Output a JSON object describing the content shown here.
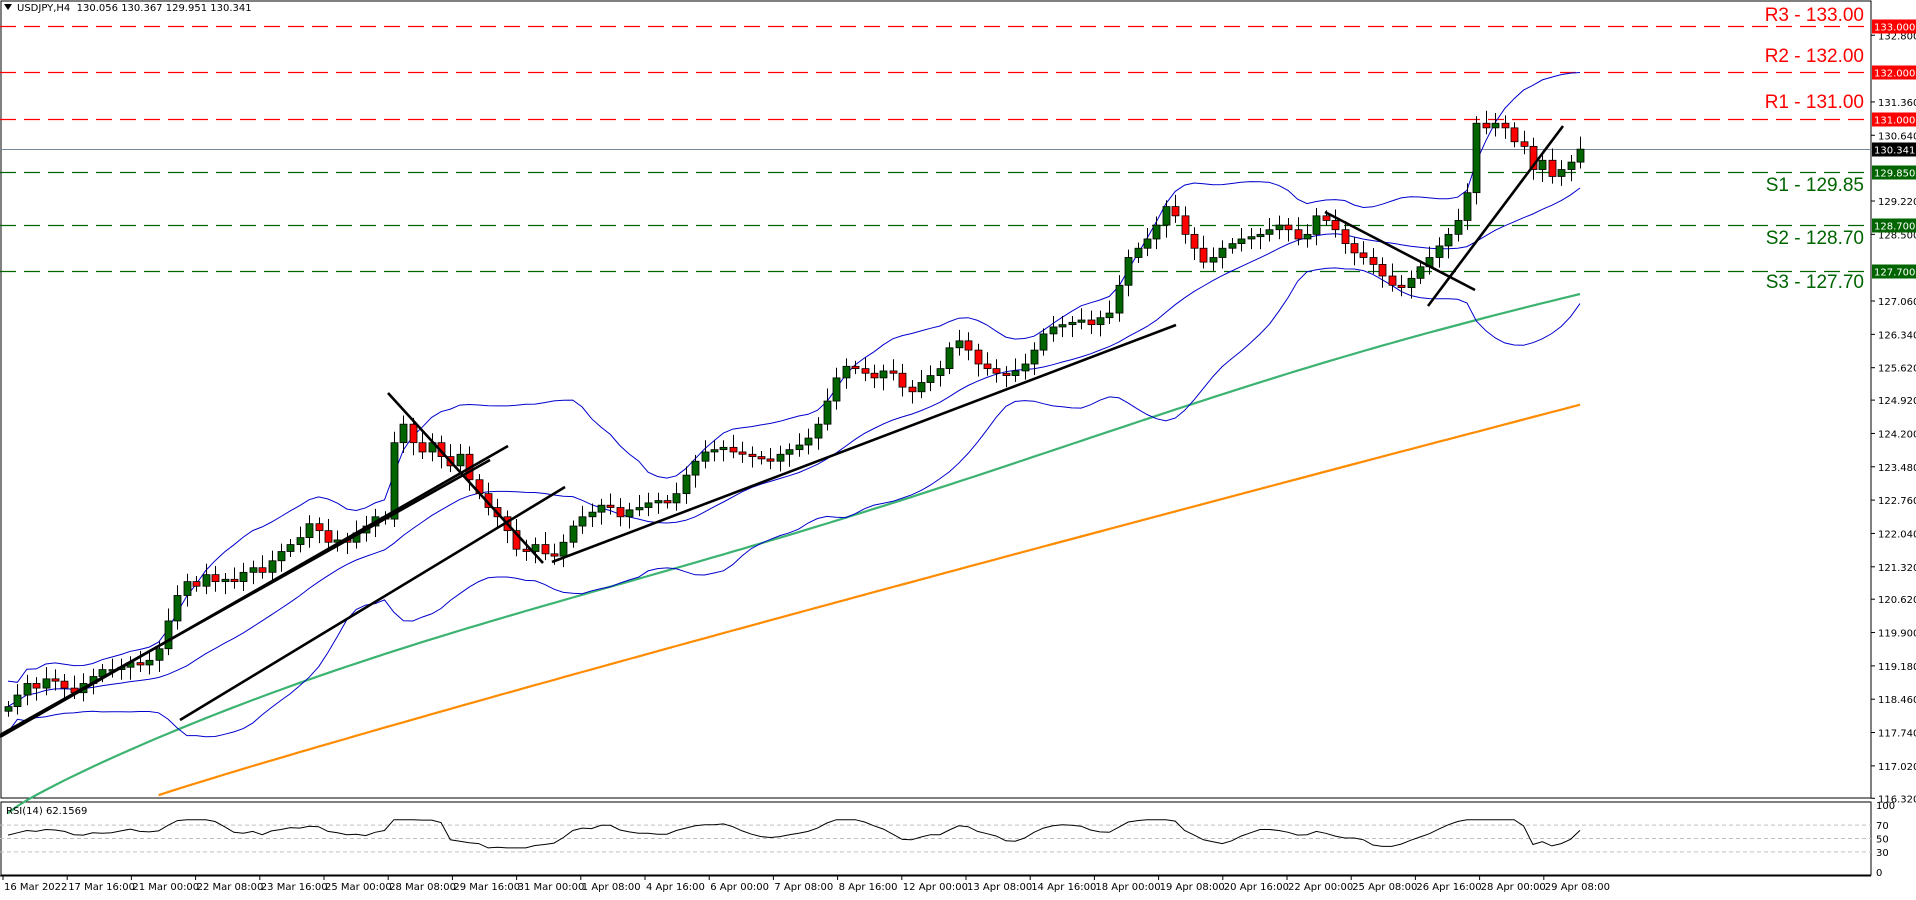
{
  "header": {
    "symbol": "USDJPY,H4",
    "ohlc": "130.056 130.367 129.951 130.341"
  },
  "colors": {
    "resistance": "#ff0000",
    "support": "#006400",
    "bullish_candle": "#006400",
    "bearish_candle": "#ff0000",
    "bollinger": "#0000cd",
    "ma_green": "#3cb371",
    "ma_orange": "#ff8c00",
    "trendline": "#000000",
    "current_price_line": "#778899"
  },
  "levels": [
    {
      "name": "R3",
      "label": "R3 - 133.00",
      "price": 133.0,
      "axis_tag": "133.000",
      "type": "resistance"
    },
    {
      "name": "R2",
      "label": "R2 - 132.00",
      "price": 132.0,
      "axis_tag": "132.000",
      "type": "resistance"
    },
    {
      "name": "R1",
      "label": "R1 - 131.00",
      "price": 131.0,
      "axis_tag": "131.000",
      "type": "resistance"
    },
    {
      "name": "S1",
      "label": "S1 - 129.85",
      "price": 129.85,
      "axis_tag": "129.850",
      "type": "support"
    },
    {
      "name": "S2",
      "label": "S2 - 128.70",
      "price": 128.7,
      "axis_tag": "128.700",
      "type": "support"
    },
    {
      "name": "S3",
      "label": "S3 - 127.70",
      "price": 127.7,
      "axis_tag": "127.700",
      "type": "support"
    }
  ],
  "current_price": {
    "value": 130.341,
    "tag": "130.341"
  },
  "rsi": {
    "label": "RSI(14) 62.1569",
    "ticks": [
      "100",
      "70",
      "50",
      "30",
      "0"
    ]
  },
  "chart_data": {
    "type": "candlestick",
    "title": "USDJPY,H4",
    "ohlc_last": {
      "open": 130.056,
      "high": 130.367,
      "low": 129.951,
      "close": 130.341
    },
    "y_axis_ticks": [
      "132.800",
      "131.360",
      "130.640",
      "129.220",
      "128.500",
      "127.060",
      "126.340",
      "125.620",
      "124.920",
      "124.200",
      "123.480",
      "122.760",
      "122.040",
      "121.320",
      "120.620",
      "119.900",
      "119.180",
      "118.460",
      "117.740",
      "117.020",
      "116.320"
    ],
    "ylim": [
      116.32,
      133.2
    ],
    "x_axis_ticks": [
      "16 Mar 2022",
      "17 Mar 16:00",
      "21 Mar 00:00",
      "22 Mar 08:00",
      "23 Mar 16:00",
      "25 Mar 00:00",
      "28 Mar 08:00",
      "29 Mar 16:00",
      "31 Mar 00:00",
      "1 Apr 08:00",
      "4 Apr 16:00",
      "6 Apr 00:00",
      "7 Apr 08:00",
      "8 Apr 16:00",
      "12 Apr 00:00",
      "13 Apr 08:00",
      "14 Apr 16:00",
      "18 Apr 00:00",
      "19 Apr 08:00",
      "20 Apr 16:00",
      "22 Apr 00:00",
      "25 Apr 08:00",
      "26 Apr 16:00",
      "28 Apr 00:00",
      "29 Apr 08:00"
    ],
    "horizontal_levels": [
      {
        "label": "R3",
        "value": 133.0
      },
      {
        "label": "R2",
        "value": 132.0
      },
      {
        "label": "R1",
        "value": 131.0
      },
      {
        "label": "S1",
        "value": 129.85
      },
      {
        "label": "S2",
        "value": 128.7
      },
      {
        "label": "S3",
        "value": 127.7
      }
    ],
    "close_path": [
      118.3,
      118.55,
      118.8,
      118.7,
      118.9,
      118.85,
      118.7,
      118.6,
      118.8,
      118.95,
      119.1,
      119.1,
      119.15,
      119.25,
      119.2,
      119.3,
      119.55,
      120.15,
      120.7,
      121.0,
      120.9,
      121.15,
      121.0,
      121.05,
      121.0,
      121.2,
      121.3,
      121.2,
      121.45,
      121.65,
      121.8,
      121.95,
      122.25,
      122.1,
      121.85,
      121.9,
      121.85,
      122.05,
      122.2,
      122.4,
      122.35,
      124.0,
      124.4,
      124.0,
      123.8,
      124.0,
      123.7,
      123.5,
      123.75,
      123.2,
      122.9,
      122.6,
      122.4,
      122.1,
      121.7,
      121.65,
      121.8,
      121.6,
      121.55,
      121.85,
      122.2,
      122.4,
      122.5,
      122.65,
      122.6,
      122.4,
      122.55,
      122.6,
      122.7,
      122.75,
      122.7,
      122.9,
      123.3,
      123.6,
      123.8,
      123.85,
      123.9,
      123.8,
      123.75,
      123.7,
      123.65,
      123.6,
      123.75,
      123.85,
      123.95,
      124.1,
      124.4,
      124.9,
      125.4,
      125.65,
      125.6,
      125.5,
      125.4,
      125.55,
      125.5,
      125.2,
      125.1,
      125.3,
      125.45,
      125.6,
      126.05,
      126.2,
      126.0,
      125.7,
      125.6,
      125.5,
      125.45,
      125.55,
      125.7,
      126.0,
      126.35,
      126.5,
      126.55,
      126.6,
      126.65,
      126.55,
      126.7,
      126.8,
      127.4,
      128.0,
      128.2,
      128.4,
      128.7,
      129.1,
      128.9,
      128.5,
      128.2,
      127.9,
      128.0,
      128.2,
      128.3,
      128.4,
      128.45,
      128.5,
      128.6,
      128.7,
      128.6,
      128.4,
      128.5,
      128.9,
      128.8,
      128.6,
      128.3,
      128.1,
      128.0,
      127.85,
      127.6,
      127.4,
      127.35,
      127.55,
      127.8,
      128.0,
      128.25,
      128.5,
      128.8,
      129.4,
      130.9,
      130.8,
      130.9,
      130.8,
      130.5,
      130.4,
      129.9,
      130.1,
      129.75,
      129.9,
      130.06,
      130.34
    ],
    "bollinger_upper_approx": "follows price ~+1.0 above",
    "bollinger_lower_approx": "follows price ~-1.2 below",
    "ma_green_range": [
      116.32,
      127.15
    ],
    "ma_orange_range": [
      116.32,
      124.8
    ],
    "rsi_last": 62.1569,
    "rsi_levels": [
      70,
      50,
      30
    ],
    "xlabel": "",
    "ylabel": ""
  }
}
